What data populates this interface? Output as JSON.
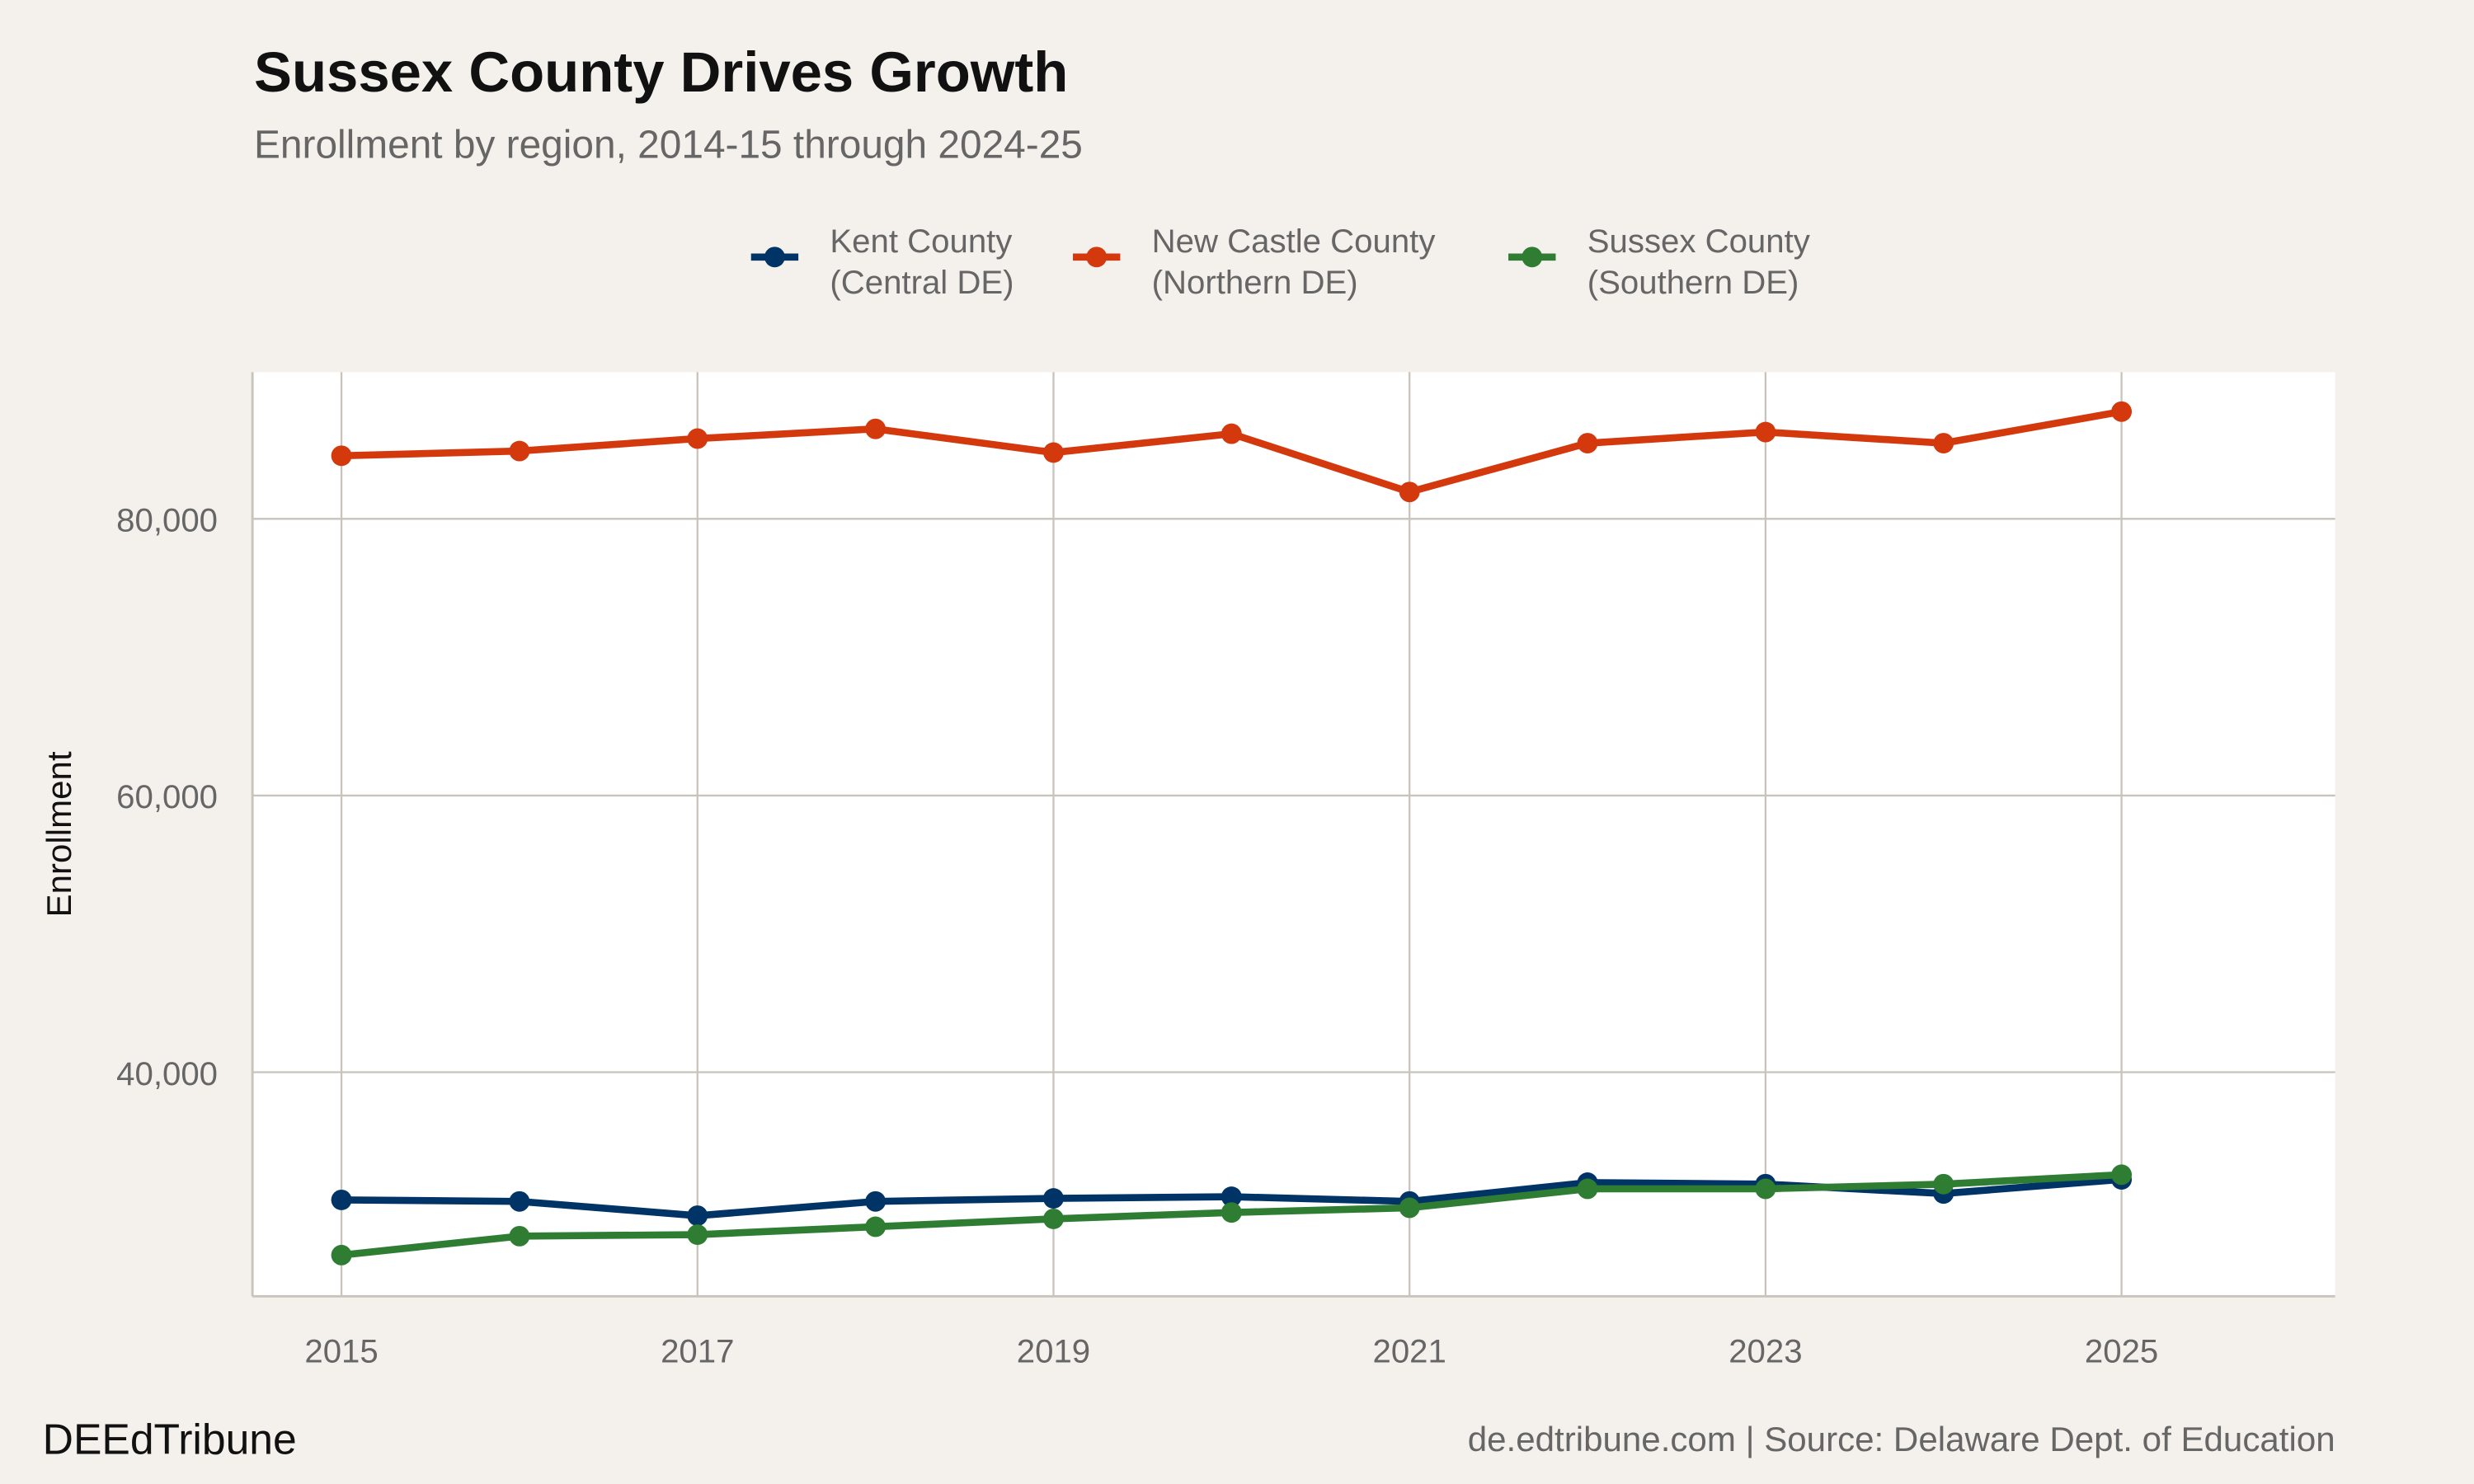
{
  "title": "Sussex County Drives Growth",
  "subtitle": "Enrollment by region, 2014-15 through 2024-25",
  "footer_left": "DEEdTribune",
  "footer_right": "de.edtribune.com | Source: Delaware Dept. of Education",
  "chart_data": {
    "type": "line",
    "title": "Sussex County Drives Growth",
    "subtitle": "Enrollment by region, 2014-15 through 2024-25",
    "xlabel": "",
    "ylabel": "Enrollment",
    "x": [
      2015,
      2016,
      2017,
      2018,
      2019,
      2020,
      2021,
      2022,
      2023,
      2024,
      2025
    ],
    "xticks": [
      "2015",
      "2017",
      "2019",
      "2021",
      "2023",
      "2025"
    ],
    "xtick_values": [
      2015,
      2017,
      2019,
      2021,
      2023,
      2025
    ],
    "yticks": [
      "40,000",
      "60,000",
      "80,000"
    ],
    "ytick_values": [
      40000,
      60000,
      80000
    ],
    "xlim": [
      2014.5,
      2026.2
    ],
    "ylim": [
      23800,
      90600
    ],
    "grid": true,
    "legend_position": "top",
    "series": [
      {
        "name_line1": "Kent County",
        "name_line2": "(Central DE)",
        "color": "#003366",
        "values": [
          30770,
          30660,
          29630,
          30660,
          30880,
          31000,
          30660,
          32020,
          31910,
          31230,
          32250
        ]
      },
      {
        "name_line1": "New Castle County",
        "name_line2": "(Northern DE)",
        "color": "#d4380d",
        "values": [
          84560,
          84900,
          85800,
          86500,
          84790,
          86150,
          81940,
          85470,
          86270,
          85470,
          87750
        ]
      },
      {
        "name_line1": "Sussex County",
        "name_line2": "(Southern DE)",
        "color": "#2e7d32",
        "values": [
          26780,
          28150,
          28260,
          28830,
          29400,
          29860,
          30200,
          31570,
          31570,
          31910,
          32590
        ]
      }
    ]
  }
}
